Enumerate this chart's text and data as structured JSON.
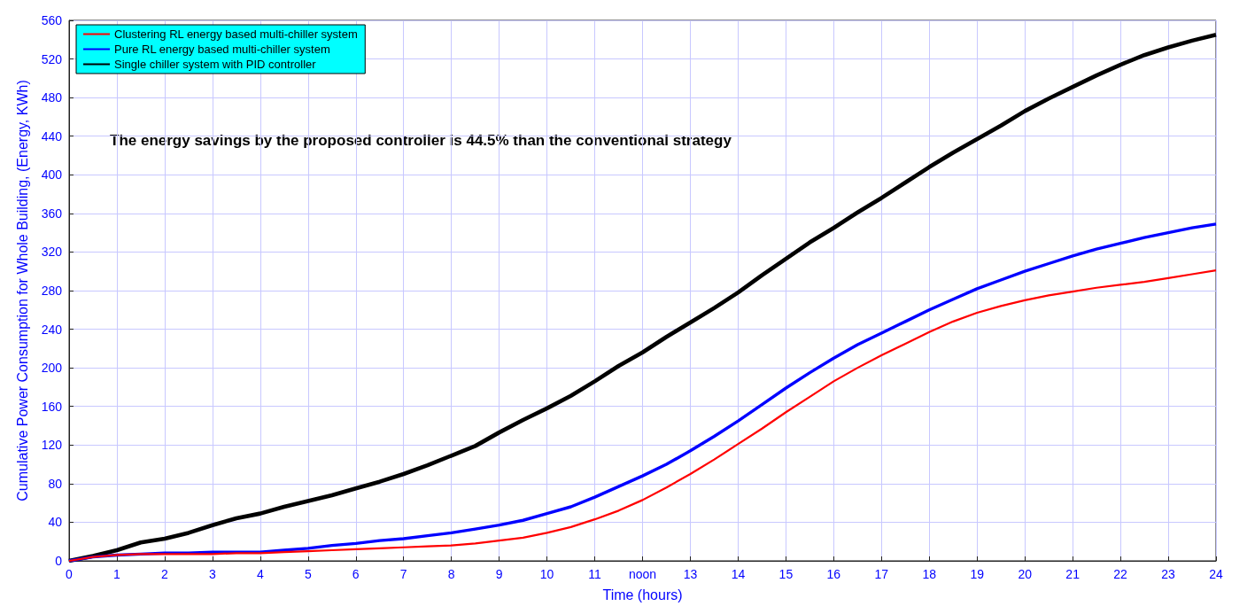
{
  "chart_data": {
    "type": "line",
    "xlabel": "Time (hours)",
    "ylabel": "Cumulative Power Consumption for Whole Building, (Energy, KWh)",
    "annotations": [
      "The energy savings by the proposed controller is 44.5% than the conventional strategy"
    ],
    "x": [
      0,
      0.5,
      1,
      1.5,
      2,
      2.5,
      3,
      3.5,
      4,
      4.5,
      5,
      5.5,
      6,
      6.5,
      7,
      7.5,
      8,
      8.5,
      9,
      9.5,
      10,
      10.5,
      11,
      11.5,
      12,
      12.5,
      13,
      13.5,
      14,
      14.5,
      15,
      15.5,
      16,
      16.5,
      17,
      17.5,
      18,
      18.5,
      19,
      19.5,
      20,
      20.5,
      21,
      21.5,
      22,
      22.5,
      23,
      23.5,
      24
    ],
    "series": [
      {
        "name": "Clustering RL energy based multi-chiller system",
        "color": "#ff0000",
        "values": [
          0,
          4,
          6,
          7,
          7,
          7,
          7,
          8,
          8,
          9,
          10,
          11,
          12,
          13,
          14,
          15,
          16,
          18,
          21,
          24,
          29,
          35,
          43,
          52,
          63,
          76,
          90,
          105,
          121,
          137,
          154,
          170,
          186,
          200,
          213,
          225,
          237,
          248,
          257,
          264,
          270,
          275,
          279,
          283,
          286,
          289,
          293,
          297,
          301
        ]
      },
      {
        "name": "Pure RL energy based multi-chiller system",
        "color": "#0000ff",
        "values": [
          0,
          4,
          6,
          7,
          8,
          8,
          9,
          9,
          9,
          11,
          13,
          16,
          18,
          21,
          23,
          26,
          29,
          33,
          37,
          42,
          49,
          56,
          66,
          77,
          88,
          100,
          114,
          129,
          145,
          162,
          179,
          195,
          210,
          224,
          236,
          248,
          260,
          271,
          282,
          291,
          300,
          308,
          316,
          323,
          329,
          335,
          340,
          345,
          349
        ]
      },
      {
        "name": "Single chiller system with PID controller",
        "color": "#000000",
        "values": [
          0,
          5,
          11,
          19,
          23,
          29,
          37,
          44,
          49,
          56,
          62,
          68,
          75,
          82,
          90,
          99,
          109,
          119,
          133,
          146,
          158,
          171,
          186,
          202,
          216,
          232,
          247,
          262,
          278,
          296,
          313,
          330,
          345,
          361,
          376,
          392,
          408,
          423,
          437,
          451,
          466,
          479,
          491,
          503,
          514,
          524,
          532,
          539,
          545
        ]
      }
    ],
    "xlim": [
      0,
      24
    ],
    "xticks": [
      0,
      1,
      2,
      3,
      4,
      5,
      6,
      7,
      8,
      9,
      10,
      11,
      {
        "value": 12,
        "label": "noon"
      },
      13,
      14,
      15,
      16,
      17,
      18,
      19,
      20,
      21,
      22,
      23,
      24
    ],
    "ylim": [
      0,
      560
    ],
    "yticks": [
      0,
      40,
      80,
      120,
      160,
      200,
      240,
      280,
      320,
      360,
      400,
      440,
      480,
      520,
      560
    ],
    "grid": true,
    "legend": "top left",
    "marker": "none",
    "line_style": "solid"
  }
}
